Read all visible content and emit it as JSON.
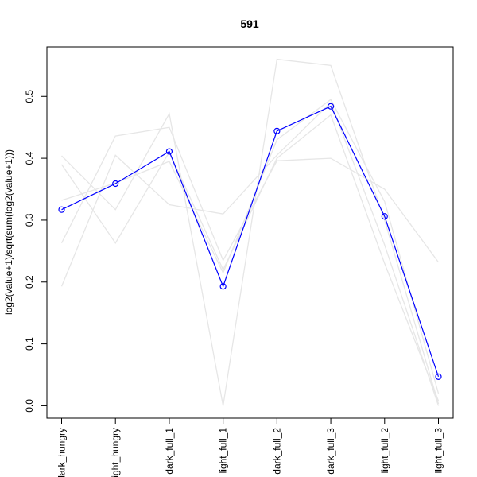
{
  "chart_data": {
    "type": "line",
    "title": "591",
    "xlabel": "",
    "ylabel": "log2(value+1)/sqrt(sum(log2(value+1)))",
    "categories": [
      "dark_hungry",
      "light_hungry",
      "dark_full_1",
      "light_full_1",
      "dark_full_2",
      "dark_full_3",
      "light_full_2",
      "light_full_3"
    ],
    "ylim": [
      -0.02,
      0.58
    ],
    "yticks": [
      0.0,
      0.1,
      0.2,
      0.3,
      0.4,
      0.5
    ],
    "ytick_labels": [
      "0.0",
      "0.1",
      "0.2",
      "0.3",
      "0.4",
      "0.5"
    ],
    "grid": false,
    "legend": "none",
    "series": [
      {
        "role": "highlight",
        "color": "#0000ff",
        "markers": "open-circle",
        "values": [
          0.317,
          0.359,
          0.411,
          0.193,
          0.444,
          0.484,
          0.306,
          0.047
        ]
      },
      {
        "role": "background",
        "color": "#e6e6e6",
        "values": [
          0.404,
          0.317,
          0.472,
          0.0,
          0.56,
          0.55,
          0.3,
          0.003
        ]
      },
      {
        "role": "background",
        "color": "#e6e6e6",
        "values": [
          0.263,
          0.436,
          0.45,
          0.235,
          0.396,
          0.4,
          0.35,
          0.232
        ]
      },
      {
        "role": "background",
        "color": "#e6e6e6",
        "values": [
          0.193,
          0.405,
          0.325,
          0.31,
          0.405,
          0.49,
          0.26,
          0.0
        ]
      },
      {
        "role": "background",
        "color": "#e6e6e6",
        "values": [
          0.39,
          0.263,
          0.41,
          0.22,
          0.4,
          0.47,
          0.23,
          0.008
        ]
      },
      {
        "role": "background",
        "color": "#e6e6e6",
        "values": [
          0.332,
          0.36,
          0.395,
          0.215,
          0.43,
          0.495,
          0.33,
          0.02
        ]
      }
    ]
  }
}
